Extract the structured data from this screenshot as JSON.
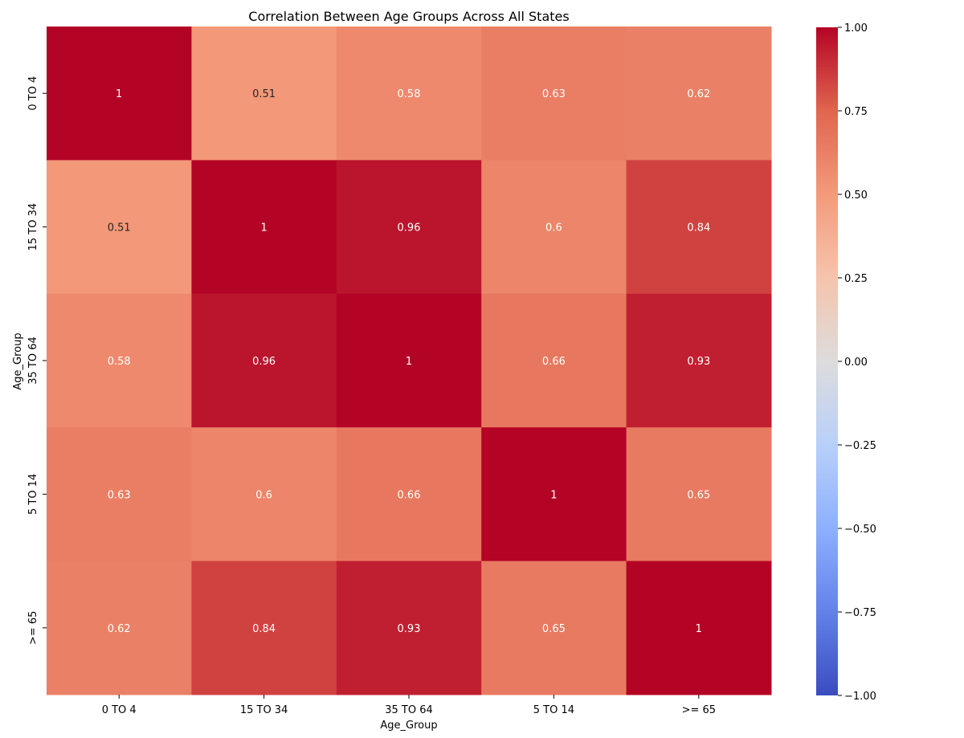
{
  "chart_data": {
    "type": "heatmap",
    "title": "Correlation Between Age Groups Across All States",
    "xlabel": "Age_Group",
    "ylabel": "Age_Group",
    "x_categories": [
      "0 TO 4",
      "15 TO 34",
      "35 TO 64",
      "5 TO 14",
      ">= 65"
    ],
    "y_categories": [
      "0 TO 4",
      "15 TO 34",
      "35 TO 64",
      "5 TO 14",
      ">= 65"
    ],
    "values": [
      [
        1,
        0.51,
        0.58,
        0.63,
        0.62
      ],
      [
        0.51,
        1,
        0.96,
        0.6,
        0.84
      ],
      [
        0.58,
        0.96,
        1,
        0.66,
        0.93
      ],
      [
        0.63,
        0.6,
        0.66,
        1,
        0.65
      ],
      [
        0.62,
        0.84,
        0.93,
        0.65,
        1
      ]
    ],
    "value_labels": [
      [
        "1",
        "0.51",
        "0.58",
        "0.63",
        "0.62"
      ],
      [
        "0.51",
        "1",
        "0.96",
        "0.6",
        "0.84"
      ],
      [
        "0.58",
        "0.96",
        "1",
        "0.66",
        "0.93"
      ],
      [
        "0.63",
        "0.6",
        "0.66",
        "1",
        "0.65"
      ],
      [
        "0.62",
        "0.84",
        "0.93",
        "0.65",
        "1"
      ]
    ],
    "colormap": "coolwarm",
    "colorbar": {
      "range": [
        -1,
        1
      ],
      "ticks": [
        1,
        0.75,
        0.5,
        0.25,
        0,
        -0.25,
        -0.5,
        -0.75,
        -1
      ],
      "tick_labels": [
        "1.00",
        "0.75",
        "0.50",
        "0.25",
        "0.00",
        "−0.25",
        "−0.50",
        "−0.75",
        "−1.00"
      ]
    }
  }
}
